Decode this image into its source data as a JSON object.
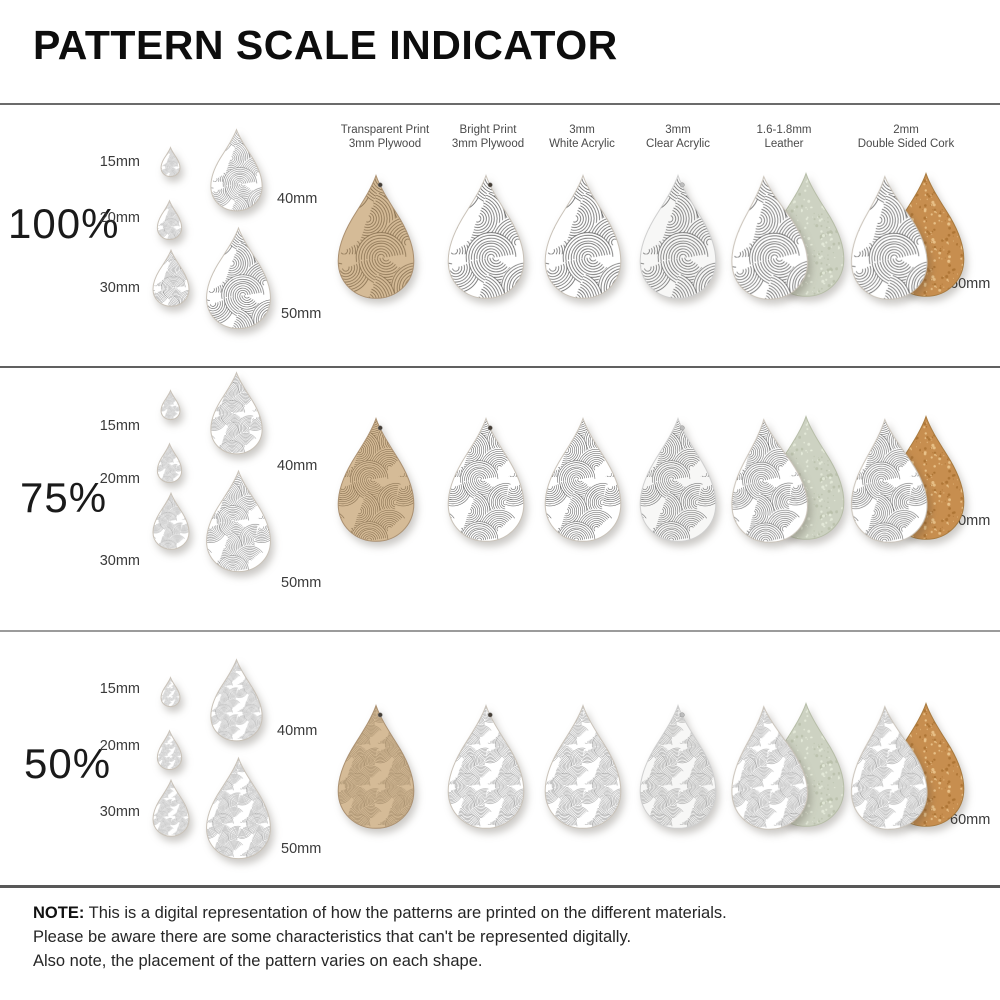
{
  "title": "PATTERN SCALE INDICATOR",
  "columns": [
    {
      "line1": "Transparent Print",
      "line2": "3mm Plywood"
    },
    {
      "line1": "Bright Print",
      "line2": "3mm Plywood"
    },
    {
      "line1": "3mm",
      "line2": "White Acrylic"
    },
    {
      "line1": "3mm",
      "line2": "Clear Acrylic"
    },
    {
      "line1": "1.6-1.8mm",
      "line2": "Leather"
    },
    {
      "line1": "2mm",
      "line2": "Double Sided Cork"
    }
  ],
  "rows": [
    {
      "label": "100%",
      "pattern_scale": 1.0
    },
    {
      "label": "75%",
      "pattern_scale": 0.75
    },
    {
      "label": "50%",
      "pattern_scale": 0.5
    }
  ],
  "sizes": {
    "s15": "15mm",
    "s20": "20mm",
    "s30": "30mm",
    "s40": "40mm",
    "s50": "50mm",
    "s60": "60mm"
  },
  "note": {
    "label": "NOTE:",
    "line1": "This is a digital representation of how the patterns are printed on the different materials.",
    "line2": "Please be aware there are some characteristics that can't be represented digitally.",
    "line3": "Also note, the placement of the pattern varies on each shape."
  },
  "colors": {
    "wood_base": "#d5bb97",
    "wood_line": "#7a6344",
    "wood_edge": "#ab9070",
    "white_base": "#ffffff",
    "white_line": "#4d4d4d",
    "white_edge": "#c9c2b8",
    "clear_base": "#f7f7f6",
    "clear_line": "#5a5a5a",
    "clear_edge": "#cfcfcf",
    "suede_base": "#cdd2c2",
    "suede_dot_dark": "#b9c0aa",
    "suede_dot_light": "#e7ecdc",
    "suede_edge": "#b6bda7",
    "cork_base": "#c78e4f",
    "cork_dot_dark": "#aa7231",
    "cork_dot_light": "#ecc88f",
    "cork_edge": "#a87a3e",
    "hole_dark": "#474038",
    "hole_light": "#bdbdbd"
  }
}
